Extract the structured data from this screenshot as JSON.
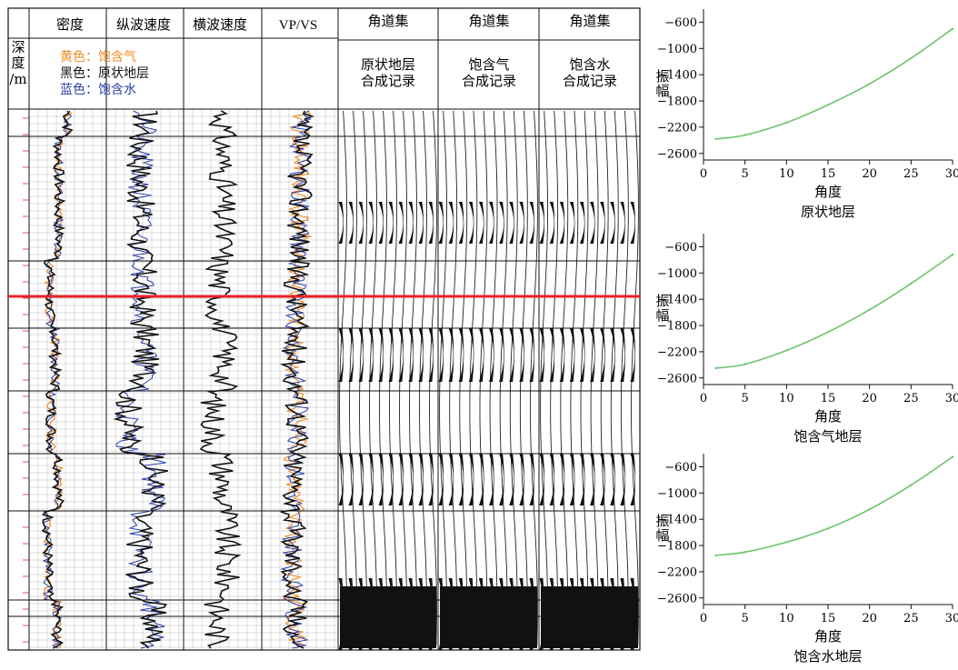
{
  "panel": {
    "depth_label": [
      "深",
      "度",
      "/m"
    ],
    "log_headers": [
      "密度",
      "纵波速度",
      "横波速度",
      "VP/VS"
    ],
    "gather_headers": [
      "角道集",
      "角道集",
      "角道集"
    ],
    "gather_subtitles": [
      [
        "原状地层",
        "合成记录"
      ],
      [
        "饱含气",
        "合成记录"
      ],
      [
        "饱含水",
        "合成记录"
      ]
    ],
    "legend": [
      {
        "text": "黄色：饱含气",
        "color": "#f08a24"
      },
      {
        "text": "黑色：原状地层",
        "color": "#111111"
      },
      {
        "text": "蓝色：饱含水",
        "color": "#2b3fa8"
      }
    ],
    "colors": {
      "gas": "#f08a24",
      "brine": "#2b3fa8",
      "original": "#111111",
      "marker": "#e8232a",
      "grid": "#bbbbbb"
    }
  },
  "chart_data": [
    {
      "type": "line",
      "title": "原状地层",
      "xlabel": "角度",
      "ylabel": "振幅",
      "xlim": [
        0,
        30
      ],
      "ylim": [
        -2700,
        -400
      ],
      "xticks": [
        0,
        5,
        10,
        15,
        20,
        25,
        30
      ],
      "yticks": [
        -600,
        -1000,
        -1400,
        -1800,
        -2200,
        -2600
      ],
      "series": [
        {
          "x": [
            1.5,
            5,
            10,
            15,
            20,
            25,
            30
          ],
          "y": [
            -2380,
            -2320,
            -2130,
            -1860,
            -1540,
            -1150,
            -700
          ]
        }
      ],
      "color": "#6cc46c"
    },
    {
      "type": "line",
      "title": "饱含气地层",
      "xlabel": "角度",
      "ylabel": "振幅",
      "xlim": [
        0,
        30
      ],
      "ylim": [
        -2700,
        -400
      ],
      "xticks": [
        0,
        5,
        10,
        15,
        20,
        25,
        30
      ],
      "yticks": [
        -600,
        -1000,
        -1400,
        -1800,
        -2200,
        -2600
      ],
      "series": [
        {
          "x": [
            1.5,
            5,
            10,
            15,
            20,
            25,
            30
          ],
          "y": [
            -2450,
            -2390,
            -2180,
            -1900,
            -1560,
            -1160,
            -720
          ]
        }
      ],
      "color": "#6cc46c"
    },
    {
      "type": "line",
      "title": "饱含水地层",
      "xlabel": "角度",
      "ylabel": "振幅",
      "xlim": [
        0,
        30
      ],
      "ylim": [
        -2700,
        -400
      ],
      "xticks": [
        0,
        5,
        10,
        15,
        20,
        25,
        30
      ],
      "yticks": [
        -600,
        -1000,
        -1400,
        -1800,
        -2200,
        -2600
      ],
      "series": [
        {
          "x": [
            1.5,
            5,
            10,
            15,
            20,
            25,
            30
          ],
          "y": [
            -1950,
            -1900,
            -1750,
            -1540,
            -1250,
            -880,
            -450
          ]
        }
      ],
      "color": "#6cc46c"
    }
  ]
}
